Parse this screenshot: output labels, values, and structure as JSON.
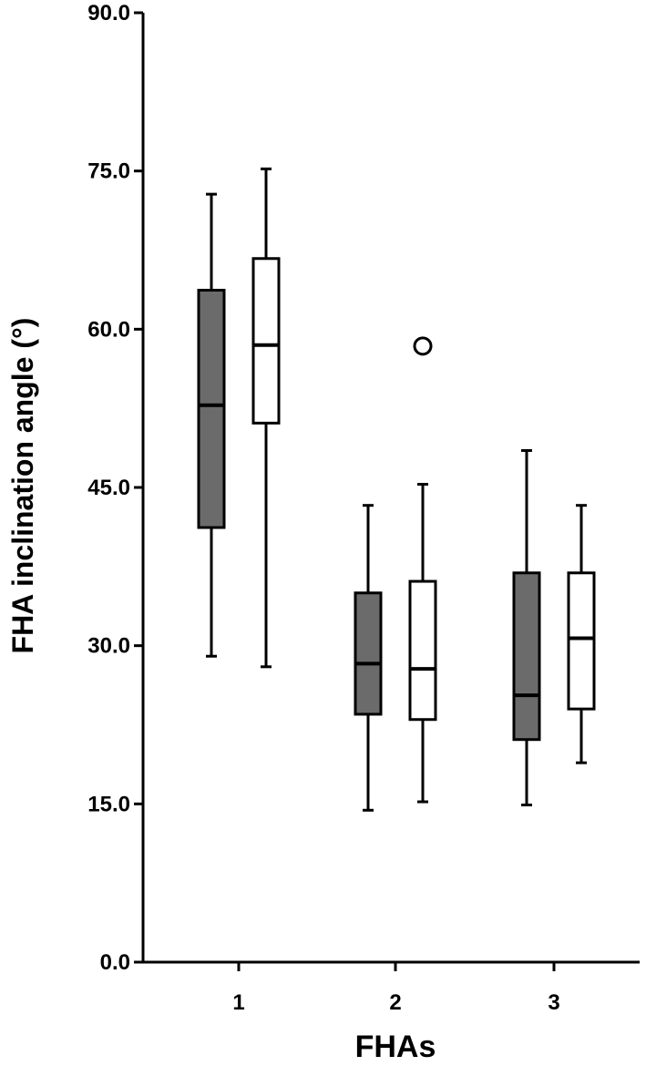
{
  "chart_data": {
    "type": "boxplot",
    "xlabel": "FHAs",
    "ylabel": "FHA inclination angle (°)",
    "ylim": [
      0,
      90
    ],
    "yticks": [
      "0.0",
      "15.0",
      "30.0",
      "45.0",
      "60.0",
      "75.0",
      "90.0"
    ],
    "categories": [
      "1",
      "2",
      "3"
    ],
    "grid": false,
    "legend": "none",
    "series": [
      {
        "color": "#6b6b6b",
        "boxes": [
          {
            "category": "1",
            "min": 29.0,
            "q1": 41.2,
            "median": 52.8,
            "q3": 63.7,
            "max": 72.8,
            "outliers": []
          },
          {
            "category": "2",
            "min": 14.4,
            "q1": 23.5,
            "median": 28.3,
            "q3": 35.0,
            "max": 43.3,
            "outliers": []
          },
          {
            "category": "3",
            "min": 14.9,
            "q1": 21.1,
            "median": 25.3,
            "q3": 36.9,
            "max": 48.5,
            "outliers": []
          }
        ]
      },
      {
        "color": "#ffffff",
        "boxes": [
          {
            "category": "1",
            "min": 28.0,
            "q1": 51.1,
            "median": 58.5,
            "q3": 66.7,
            "max": 75.2,
            "outliers": []
          },
          {
            "category": "2",
            "min": 15.2,
            "q1": 23.0,
            "median": 27.8,
            "q3": 36.1,
            "max": 45.3,
            "outliers": [
              58.4
            ]
          },
          {
            "category": "3",
            "min": 18.9,
            "q1": 24.0,
            "median": 30.7,
            "q3": 36.9,
            "max": 43.3,
            "outliers": []
          }
        ]
      }
    ]
  }
}
